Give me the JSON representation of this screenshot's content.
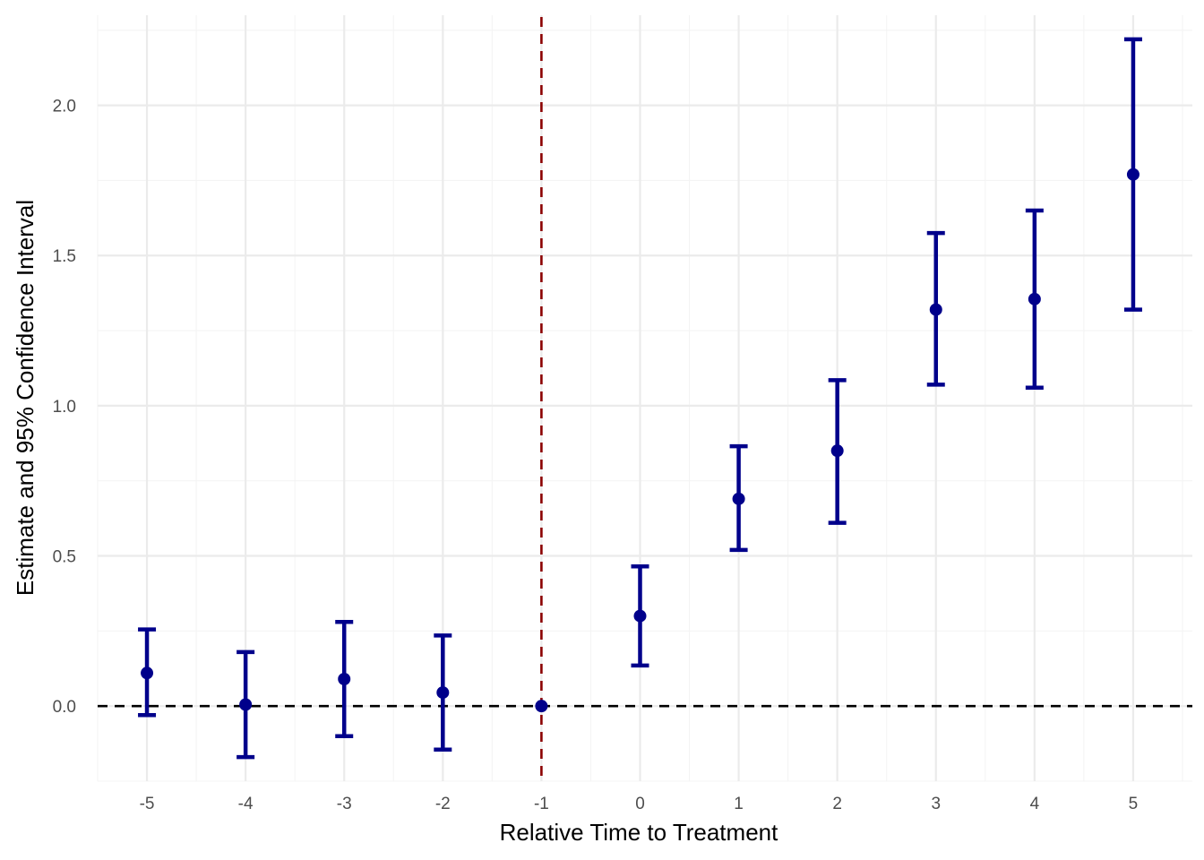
{
  "chart_data": {
    "type": "scatter",
    "title": "",
    "xlabel": "Relative Time to Treatment",
    "ylabel": "Estimate and 95% Confidence Interval",
    "x_ticks": [
      -5,
      -4,
      -3,
      -2,
      -1,
      0,
      1,
      2,
      3,
      4,
      5
    ],
    "x_tick_labels": [
      "-5",
      "-4",
      "-3",
      "-2",
      "-1",
      "0",
      "1",
      "2",
      "3",
      "4",
      "5"
    ],
    "y_ticks": [
      0.0,
      0.5,
      1.0,
      1.5,
      2.0
    ],
    "y_tick_labels": [
      "0.0",
      "0.5",
      "1.0",
      "1.5",
      "2.0"
    ],
    "xlim": [
      -5.5,
      5.6
    ],
    "ylim": [
      -0.25,
      2.3
    ],
    "grid": true,
    "series": [
      {
        "x": [
          -5,
          -4,
          -3,
          -2,
          -1,
          0,
          1,
          2,
          3,
          4,
          5
        ],
        "estimate": [
          0.11,
          0.005,
          0.09,
          0.045,
          0.0,
          0.3,
          0.69,
          0.85,
          1.32,
          1.355,
          1.77
        ],
        "ci_low": [
          -0.03,
          -0.17,
          -0.1,
          -0.145,
          null,
          0.135,
          0.52,
          0.61,
          1.07,
          1.06,
          1.32
        ],
        "ci_high": [
          0.255,
          0.18,
          0.28,
          0.235,
          null,
          0.465,
          0.865,
          1.085,
          1.575,
          1.65,
          2.22
        ]
      }
    ],
    "reference_lines": [
      {
        "orientation": "horizontal",
        "value": 0,
        "style": "dashed"
      },
      {
        "orientation": "vertical",
        "value": -1,
        "style": "dashed"
      }
    ],
    "colors": {
      "points": "#00008b",
      "hline": "#000000",
      "vline": "#8b0000",
      "grid_major": "#ebebeb",
      "grid_minor": "#f4f4f4"
    }
  }
}
